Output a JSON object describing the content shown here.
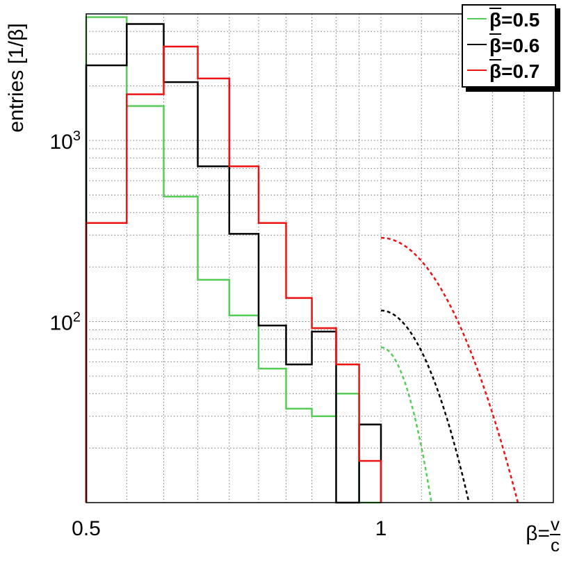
{
  "chart_data": {
    "type": "histogram",
    "ylabel": "entries [1/β]",
    "xlabel": {
      "prefix": "β=",
      "numerator": "v",
      "denominator": "c"
    },
    "x_scale": "log",
    "y_scale": "log",
    "xlim": [
      0.5,
      1.5
    ],
    "ylim": [
      10,
      5000
    ],
    "x_tick_labels": [
      {
        "value": 0.5,
        "label": "0.5"
      },
      {
        "value": 1,
        "label": "1"
      }
    ],
    "y_tick_labels": [
      {
        "value": 100,
        "base": "10",
        "exp": "2"
      },
      {
        "value": 1000,
        "base": "10",
        "exp": "3"
      }
    ],
    "bin_edges": [
      0.5,
      0.55,
      0.6,
      0.65,
      0.7,
      0.75,
      0.8,
      0.85,
      0.9,
      0.95,
      1.0
    ],
    "grid": true,
    "legend_position": "top-right",
    "series": [
      {
        "label_base": "β",
        "label_value": "=0.5",
        "color": "#55cc55",
        "values": [
          4800,
          1550,
          490,
          170,
          108,
          55,
          33,
          30,
          40,
          10
        ],
        "fit": {
          "x_start": 1.0,
          "x_end": 1.126,
          "y_start": 72,
          "y_end": 10
        }
      },
      {
        "label_base": "β",
        "label_value": "=0.6",
        "color": "#000000",
        "values": [
          2600,
          4400,
          2100,
          720,
          305,
          95,
          58,
          88,
          10,
          27
        ],
        "fit": {
          "x_start": 1.0,
          "x_end": 1.23,
          "y_start": 115,
          "y_end": 10
        }
      },
      {
        "label_base": "β",
        "label_value": "=0.7",
        "color": "#ee1111",
        "values": [
          350,
          1800,
          3300,
          2200,
          720,
          350,
          135,
          92,
          58,
          17
        ],
        "fit": {
          "x_start": 1.0,
          "x_end": 1.38,
          "y_start": 290,
          "y_end": 10
        }
      }
    ]
  }
}
